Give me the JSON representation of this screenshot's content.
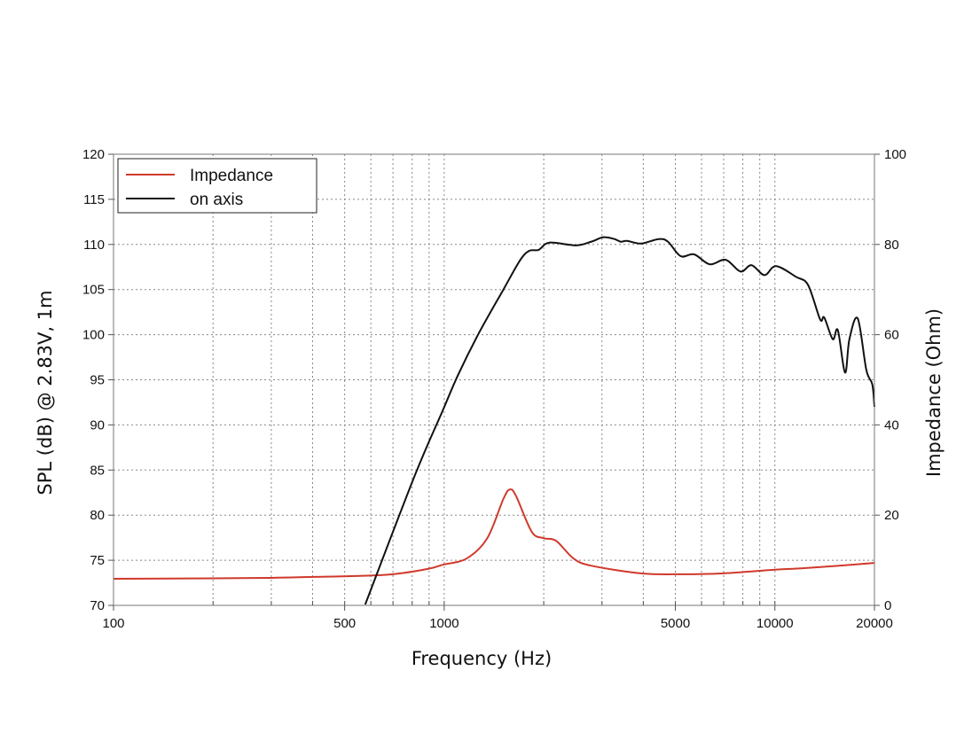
{
  "chart_data": {
    "type": "line",
    "title": "",
    "xlabel": "Frequency (Hz)",
    "ylabel": "SPL (dB) @ 2.83V, 1m",
    "y2label": "Impedance (Ohm)",
    "xscale": "log",
    "xlim": [
      100,
      20000
    ],
    "ylim": [
      70,
      120
    ],
    "y2lim": [
      0,
      100
    ],
    "grid": true,
    "legend_position": "top-left",
    "x_tick_labels": [
      "100",
      "500",
      "1000",
      "5000",
      "10000",
      "20000"
    ],
    "x_ticks": [
      100,
      500,
      1000,
      5000,
      10000,
      20000
    ],
    "y_ticks": [
      70,
      75,
      80,
      85,
      90,
      95,
      100,
      105,
      110,
      115,
      120
    ],
    "y_tick_labels": [
      "70",
      "75",
      "80",
      "85",
      "90",
      "95",
      "100",
      "105",
      "110",
      "115",
      "120"
    ],
    "y2_ticks": [
      0,
      20,
      40,
      60,
      80,
      100
    ],
    "y2_tick_labels": [
      "0",
      "20",
      "40",
      "60",
      "80",
      "100"
    ],
    "series": [
      {
        "name": "Impedance",
        "axis": "right",
        "color": "#d0392b",
        "x": [
          100,
          200,
          300,
          400,
          535,
          700,
          895,
          990,
          1170,
          1350,
          1510,
          1580,
          1650,
          1840,
          2000,
          2180,
          2460,
          2780,
          3940,
          5190,
          7000,
          10000,
          12000,
          15000,
          20000
        ],
        "y": [
          5.9,
          6.0,
          6.1,
          6.3,
          6.5,
          6.9,
          8.1,
          9.0,
          10.4,
          14.9,
          23.6,
          25.7,
          24.2,
          16.3,
          14.9,
          14.3,
          10.4,
          8.8,
          7.1,
          6.9,
          7.1,
          7.9,
          8.2,
          8.7,
          9.4
        ]
      },
      {
        "name": "on axis",
        "axis": "left",
        "color": "#111111",
        "x": [
          577,
          813,
          990,
          1100,
          1270,
          1510,
          1700,
          1810,
          1930,
          2080,
          2500,
          2780,
          3030,
          3270,
          3420,
          3570,
          3940,
          4450,
          4750,
          5190,
          5700,
          6350,
          7100,
          7870,
          8500,
          9300,
          10080,
          11600,
          12600,
          13700,
          14100,
          14960,
          15500,
          16300,
          16800,
          17800,
          18900,
          19700,
          20000
        ],
        "y": [
          70.1,
          84.3,
          91.6,
          95.5,
          100.1,
          105.0,
          108.3,
          109.3,
          109.4,
          110.2,
          109.9,
          110.3,
          110.8,
          110.6,
          110.3,
          110.4,
          110.1,
          110.6,
          110.3,
          108.7,
          108.9,
          107.8,
          108.3,
          107.0,
          107.7,
          106.6,
          107.6,
          106.4,
          105.5,
          101.7,
          101.9,
          99.5,
          100.5,
          95.8,
          99.5,
          101.8,
          96.1,
          94.5,
          92.0
        ]
      }
    ]
  }
}
